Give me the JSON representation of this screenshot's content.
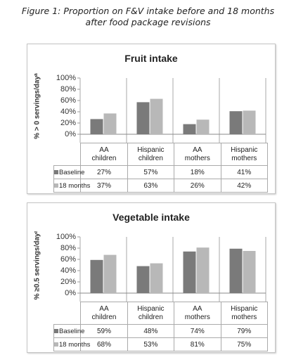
{
  "caption": [
    "Figure 1: Proportion on F&V intake before and 18 months",
    "after food package revisions"
  ],
  "chart_data": [
    {
      "type": "bar",
      "title": "Fruit intake",
      "y_label": "% > 0 servings/dayᵃ",
      "categories": [
        "AA children",
        "Hispanic children",
        "AA mothers",
        "Hispanic mothers"
      ],
      "series": [
        {
          "name": "Baseline",
          "color": "#7a7a7a",
          "values": [
            27,
            57,
            18,
            41
          ],
          "value_labels": [
            "27%",
            "57%",
            "18%",
            "41%"
          ]
        },
        {
          "name": "18 months",
          "color": "#b8b8b8",
          "values": [
            37,
            63,
            26,
            42
          ],
          "value_labels": [
            "37%",
            "63%",
            "26%",
            "42%"
          ]
        }
      ],
      "ylim": [
        0,
        100
      ],
      "yticks": [
        {
          "value": 0,
          "label": "0%"
        },
        {
          "value": 20,
          "label": "20%"
        },
        {
          "value": 40,
          "label": "40%"
        },
        {
          "value": 60,
          "label": "60%"
        },
        {
          "value": 80,
          "label": "80%"
        },
        {
          "value": 100,
          "label": "100%"
        }
      ]
    },
    {
      "type": "bar",
      "title": "Vegetable intake",
      "y_label": "% ≥0.5 servings/dayᵃ",
      "categories": [
        "AA children",
        "Hispanic children",
        "AA mothers",
        "Hispanic mothers"
      ],
      "series": [
        {
          "name": "Baseline",
          "color": "#7a7a7a",
          "values": [
            59,
            48,
            74,
            79
          ],
          "value_labels": [
            "59%",
            "48%",
            "74%",
            "79%"
          ]
        },
        {
          "name": "18 months",
          "color": "#b8b8b8",
          "values": [
            68,
            53,
            81,
            75
          ],
          "value_labels": [
            "68%",
            "53%",
            "81%",
            "75%"
          ]
        }
      ],
      "ylim": [
        0,
        100
      ],
      "yticks": [
        {
          "value": 0,
          "label": "0%"
        },
        {
          "value": 20,
          "label": "20%"
        },
        {
          "value": 40,
          "label": "40%"
        },
        {
          "value": 60,
          "label": "60%"
        },
        {
          "value": 80,
          "label": "80%"
        },
        {
          "value": 100,
          "label": "100%"
        }
      ]
    }
  ]
}
